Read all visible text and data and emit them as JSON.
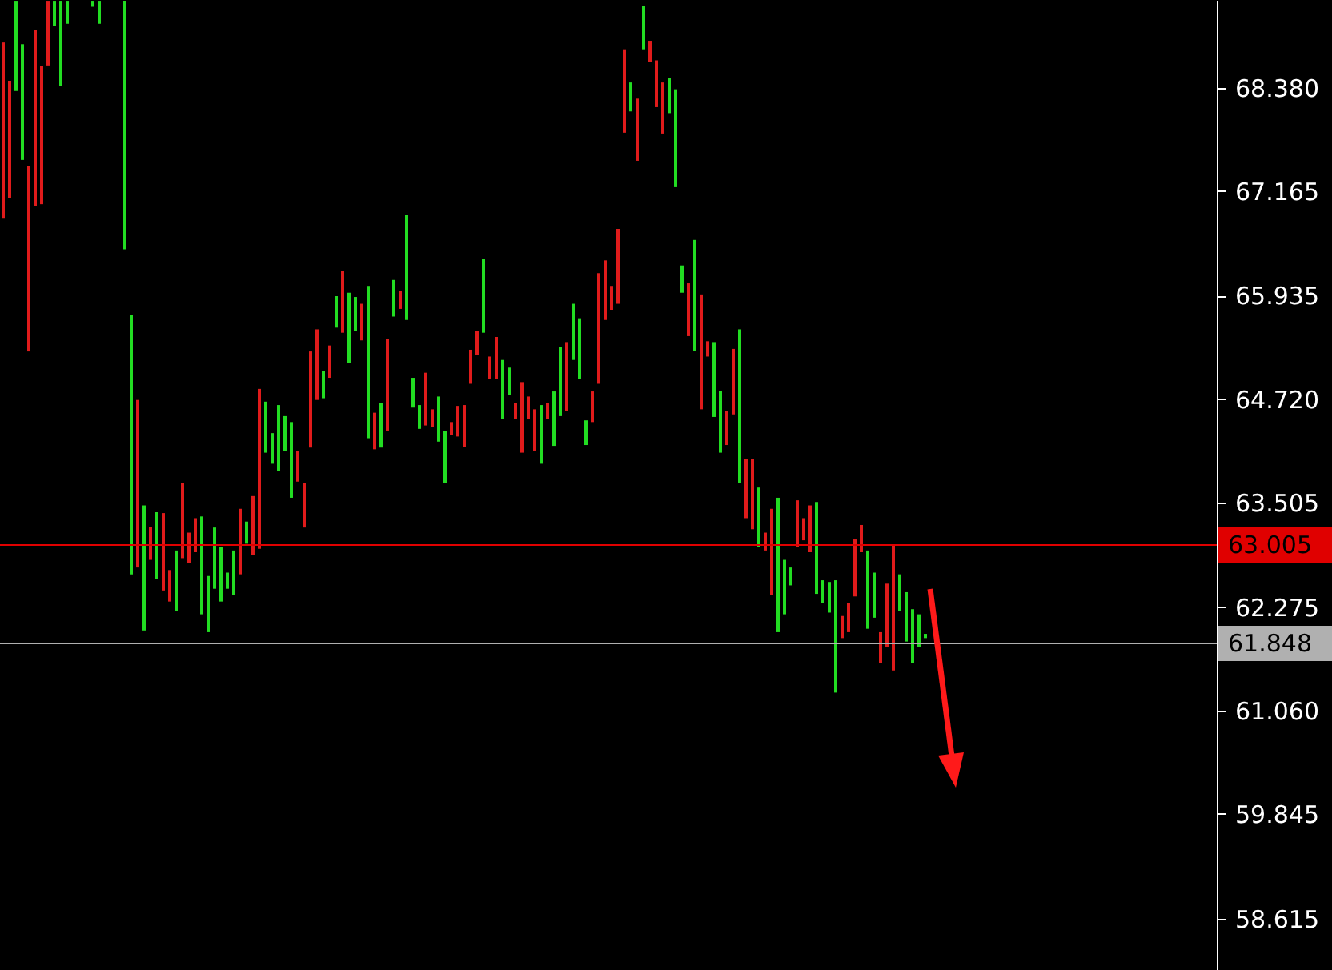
{
  "chart_data": {
    "type": "bar",
    "tick_labels": "y",
    "categories": [
      null,
      null,
      null,
      null,
      null,
      null,
      null,
      null,
      null,
      null,
      null,
      null,
      null,
      null,
      null,
      null,
      null,
      null,
      null,
      null,
      null,
      null,
      null,
      null,
      null,
      null,
      null,
      null,
      null,
      null,
      null,
      null,
      null,
      null,
      null,
      null,
      null,
      null,
      null,
      null,
      null,
      null,
      null,
      null,
      null,
      null,
      null,
      null,
      null,
      null,
      null,
      null,
      null,
      null,
      null,
      null,
      null,
      null,
      null,
      null,
      null,
      null,
      null,
      null,
      null,
      null,
      null,
      null,
      null,
      null,
      null,
      null,
      null,
      null,
      null,
      null,
      null,
      null,
      null,
      null,
      null,
      null,
      null,
      null,
      null,
      null,
      null,
      null,
      null,
      null,
      null,
      null,
      null,
      null,
      null,
      null,
      null,
      null,
      null,
      null,
      null,
      null,
      null,
      null,
      null,
      null,
      null,
      null,
      null,
      null,
      null,
      null,
      null,
      null,
      null,
      null,
      null,
      null,
      null,
      null,
      null,
      null,
      null,
      null,
      null,
      null,
      null,
      null,
      null,
      null,
      null,
      null,
      null,
      null,
      null,
      null,
      null,
      null,
      null,
      null,
      null,
      null,
      null,
      null,
      null,
      null,
      null,
      null,
      null,
      null,
      null,
      null,
      null,
      null,
      null,
      null,
      null,
      null,
      null,
      null,
      null,
      null,
      null,
      null,
      null,
      null,
      null,
      null,
      null,
      null,
      null,
      null,
      null,
      null,
      null,
      null,
      null,
      null,
      null,
      null,
      null,
      null,
      null,
      null,
      null,
      null,
      null,
      null,
      null,
      null
    ],
    "values": [
      2.07,
      1.38,
      1.06,
      1.36,
      2.18,
      2.07,
      1.62,
      0.76,
      0.3,
      1.0,
      0.27,
      null,
      null,
      null,
      0.07,
      0.27,
      null,
      null,
      null,
      2.92,
      3.05,
      1.97,
      1.47,
      0.39,
      0.79,
      0.91,
      0.37,
      0.71,
      0.88,
      0.36,
      0.4,
      1.15,
      0.66,
      0.72,
      0.64,
      0.19,
      0.52,
      0.77,
      0.26,
      0.69,
      1.88,
      0.6,
      0.36,
      0.78,
      0.41,
      0.89,
      0.36,
      0.52,
      1.13,
      0.83,
      0.32,
      0.38,
      0.37,
      0.73,
      0.83,
      0.4,
      0.43,
      1.79,
      0.43,
      0.52,
      1.08,
      0.43,
      0.21,
      1.23,
      0.35,
      0.28,
      0.62,
      0.21,
      0.53,
      0.61,
      0.15,
      0.36,
      0.49,
      0.4,
      0.28,
      0.87,
      0.26,
      0.49,
      0.69,
      0.32,
      0.18,
      0.83,
      0.26,
      0.49,
      0.69,
      0.18,
      0.64,
      0.81,
      0.81,
      0.66,
      0.71,
      0.29,
      0.36,
      1.3,
      0.7,
      0.28,
      0.88,
      0.98,
      0.34,
      0.73,
      0.51,
      0.25,
      0.55,
      0.6,
      0.41,
      1.15,
      0.32,
      0.62,
      1.3,
      1.35,
      0.18,
      0.88,
      0.73,
      0.4,
      0.77,
      1.81,
      0.7,
      0.83,
      0.7,
      0.21,
      1.01,
      1.58,
      0.64,
      0.21,
      0.55,
      0.26,
      0.55,
      1.08,
      0.27,
      0.36,
      1.32,
      0.26,
      0.34,
      0.67,
      0.32,
      0.92,
      0.53,
      0.36,
      0.74,
      1.47,
      0.43,
      0.58,
      0.63,
      0.38,
      0.05,
      null,
      null,
      null,
      null,
      null,
      null,
      null,
      null,
      null,
      null,
      null,
      null,
      null,
      null,
      null,
      null,
      null,
      null,
      null,
      null,
      null,
      null,
      null,
      null,
      null,
      null,
      null,
      null,
      null,
      null,
      null,
      null,
      null,
      null,
      null,
      null,
      null,
      null,
      null,
      null,
      null,
      null,
      null,
      null,
      null
    ],
    "base": [
      66.84,
      67.08,
      68.34,
      67.53,
      65.28,
      66.99,
      67.01,
      68.64,
      69.1,
      68.4,
      69.13,
      null,
      null,
      null,
      69.33,
      69.13,
      null,
      null,
      null,
      66.48,
      62.66,
      62.74,
      62.0,
      62.83,
      62.6,
      62.47,
      62.34,
      62.23,
      62.85,
      62.79,
      62.92,
      62.19,
      61.98,
      62.49,
      62.34,
      62.49,
      62.42,
      62.66,
      63.02,
      62.89,
      62.96,
      64.09,
      63.96,
      63.87,
      64.11,
      63.56,
      63.75,
      63.21,
      64.15,
      64.71,
      64.73,
      64.97,
      65.56,
      65.5,
      65.14,
      65.52,
      65.41,
      64.26,
      64.13,
      64.15,
      64.35,
      65.69,
      65.78,
      65.65,
      64.62,
      64.37,
      64.41,
      64.39,
      64.22,
      63.73,
      64.3,
      64.28,
      64.16,
      64.9,
      65.24,
      65.5,
      64.96,
      64.96,
      64.49,
      64.77,
      64.49,
      64.09,
      64.49,
      64.11,
      63.96,
      64.49,
      64.17,
      64.52,
      64.58,
      65.18,
      64.96,
      64.18,
      64.45,
      64.9,
      65.65,
      65.77,
      65.84,
      67.85,
      68.1,
      67.52,
      68.83,
      68.68,
      68.15,
      67.84,
      68.08,
      67.21,
      65.97,
      65.46,
      65.29,
      64.6,
      65.22,
      64.51,
      64.09,
      64.18,
      64.54,
      63.73,
      63.32,
      63.19,
      62.98,
      62.94,
      62.42,
      61.98,
      62.19,
      62.53,
      62.98,
      63.06,
      62.92,
      62.43,
      62.32,
      62.21,
      61.27,
      61.91,
      61.98,
      62.4,
      62.92,
      62.02,
      62.15,
      61.62,
      61.81,
      61.53,
      62.23,
      61.87,
      61.62,
      61.81,
      61.91,
      null,
      null,
      null,
      null,
      null,
      null,
      null,
      null,
      null,
      null,
      null,
      null,
      null,
      null,
      null,
      null,
      null,
      null,
      null,
      null,
      null,
      null,
      null,
      null,
      null,
      null,
      null,
      null,
      null,
      null,
      null,
      null,
      null,
      null,
      null,
      null,
      null,
      null,
      null,
      null,
      null,
      null,
      null,
      null,
      null
    ],
    "colors": [
      "#e01b1b",
      "#e01b1b",
      "#22dd22",
      "#22dd22",
      "#e01b1b",
      "#e01b1b",
      "#e01b1b",
      "#e01b1b",
      "#22dd22",
      "#22dd22",
      "#22dd22",
      null,
      null,
      null,
      "#22dd22",
      "#22dd22",
      null,
      null,
      null,
      "#22dd22",
      "#22dd22",
      "#e01b1b",
      "#22dd22",
      "#e01b1b",
      "#22dd22",
      "#e01b1b",
      "#e01b1b",
      "#22dd22",
      "#e01b1b",
      "#e01b1b",
      "#e01b1b",
      "#22dd22",
      "#22dd22",
      "#22dd22",
      "#22dd22",
      "#22dd22",
      "#22dd22",
      "#e01b1b",
      "#22dd22",
      "#e01b1b",
      "#e01b1b",
      "#22dd22",
      "#22dd22",
      "#22dd22",
      "#22dd22",
      "#22dd22",
      "#e01b1b",
      "#e01b1b",
      "#e01b1b",
      "#e01b1b",
      "#22dd22",
      "#e01b1b",
      "#22dd22",
      "#e01b1b",
      "#22dd22",
      "#22dd22",
      "#e01b1b",
      "#22dd22",
      "#e01b1b",
      "#22dd22",
      "#e01b1b",
      "#22dd22",
      "#e01b1b",
      "#22dd22",
      "#22dd22",
      "#22dd22",
      "#e01b1b",
      "#e01b1b",
      "#22dd22",
      "#22dd22",
      "#e01b1b",
      "#e01b1b",
      "#e01b1b",
      "#e01b1b",
      "#e01b1b",
      "#22dd22",
      "#e01b1b",
      "#e01b1b",
      "#22dd22",
      "#22dd22",
      "#e01b1b",
      "#e01b1b",
      "#e01b1b",
      "#e01b1b",
      "#22dd22",
      "#e01b1b",
      "#22dd22",
      "#22dd22",
      "#e01b1b",
      "#22dd22",
      "#22dd22",
      "#22dd22",
      "#e01b1b",
      "#e01b1b",
      "#e01b1b",
      "#e01b1b",
      "#e01b1b",
      "#e01b1b",
      "#22dd22",
      "#e01b1b",
      "#22dd22",
      "#e01b1b",
      "#e01b1b",
      "#e01b1b",
      "#22dd22",
      "#22dd22",
      "#22dd22",
      "#e01b1b",
      "#22dd22",
      "#e01b1b",
      "#e01b1b",
      "#22dd22",
      "#22dd22",
      "#e01b1b",
      "#e01b1b",
      "#22dd22",
      "#e01b1b",
      "#e01b1b",
      "#22dd22",
      "#e01b1b",
      "#e01b1b",
      "#22dd22",
      "#22dd22",
      "#22dd22",
      "#e01b1b",
      "#e01b1b",
      "#e01b1b",
      "#22dd22",
      "#22dd22",
      "#22dd22",
      "#22dd22",
      "#e01b1b",
      "#e01b1b",
      "#e01b1b",
      "#e01b1b",
      "#22dd22",
      "#22dd22",
      "#e01b1b",
      "#e01b1b",
      "#e01b1b",
      "#22dd22",
      "#22dd22",
      "#22dd22",
      "#22dd22",
      "#22dd22",
      null,
      null,
      null,
      null,
      null,
      null,
      null,
      null,
      null,
      null,
      null,
      null,
      null,
      null,
      null,
      null,
      null,
      null,
      null,
      null,
      null,
      null,
      null,
      null,
      null,
      null,
      null,
      null,
      null,
      null,
      null,
      null,
      null,
      null,
      null,
      null,
      null,
      null,
      null,
      null,
      null,
      null,
      null,
      null,
      null
    ],
    "ylim": [
      58.01,
      69.41
    ],
    "yticks": [
      {
        "value": 68.38,
        "label": "68.380"
      },
      {
        "value": 67.165,
        "label": "67.165"
      },
      {
        "value": 65.935,
        "label": "65.935"
      },
      {
        "value": 64.72,
        "label": "64.720"
      },
      {
        "value": 63.505,
        "label": "63.505"
      },
      {
        "value": 62.275,
        "label": "62.275"
      },
      {
        "value": 61.06,
        "label": "61.060"
      },
      {
        "value": 59.845,
        "label": "59.845"
      },
      {
        "value": 58.615,
        "label": "58.615"
      }
    ],
    "ref_lines": [
      {
        "axis": "y",
        "value": 63.005,
        "label": "63.005",
        "color": "#e00000"
      },
      {
        "axis": "y",
        "value": 61.848,
        "label": "61.848",
        "color": "#b0b0b0"
      }
    ],
    "grid": false
  }
}
